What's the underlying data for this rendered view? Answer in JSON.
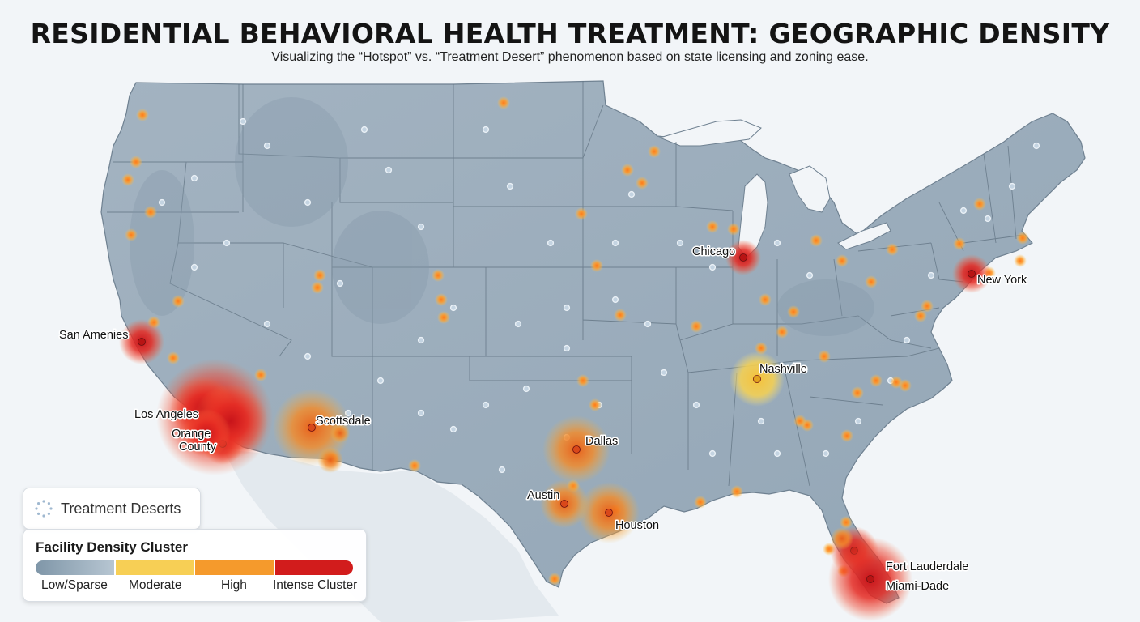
{
  "title": "RESIDENTIAL BEHAVIORAL HEALTH TREATMENT: GEOGRAPHIC DENSITY",
  "subtitle": "Visualizing the “Hotspot” vs. “Treatment Desert” phenomenon based on state licensing and zoning ease.",
  "colors": {
    "land": "#9eafbd",
    "land_dark": "#8c9eae",
    "ocean": "#f2f5f8",
    "border": "#5f7180",
    "low": "#9fb2c2",
    "moderate": "#f7cf55",
    "high": "#f59a2c",
    "intense": "#d21c1c"
  },
  "legend": {
    "deserts": {
      "label": "Treatment Deserts",
      "icon": "dotted-circle-icon"
    },
    "density": {
      "title": "Facility Density Cluster",
      "levels": [
        {
          "label": "Low/Sparse",
          "color": "#9fb2c2"
        },
        {
          "label": "Moderate",
          "color": "#f7cf55"
        },
        {
          "label": "High",
          "color": "#f59a2c"
        },
        {
          "label": "Intense Cluster",
          "color": "#d21c1c"
        }
      ]
    }
  },
  "cities": [
    {
      "name": "Chicago",
      "level": "intense"
    },
    {
      "name": "New York",
      "level": "intense"
    },
    {
      "name": "San Amenies",
      "level": "intense"
    },
    {
      "name": "Los Angeles",
      "level": "intense"
    },
    {
      "name": "Orange County",
      "level": "intense"
    },
    {
      "name": "Scottsdale",
      "level": "high"
    },
    {
      "name": "Nashville",
      "level": "moderate"
    },
    {
      "name": "Dallas",
      "level": "high"
    },
    {
      "name": "Austin",
      "level": "high"
    },
    {
      "name": "Houston",
      "level": "high"
    },
    {
      "name": "Fort Lauderdale",
      "level": "intense"
    },
    {
      "name": "Miami-Dade",
      "level": "intense"
    }
  ]
}
